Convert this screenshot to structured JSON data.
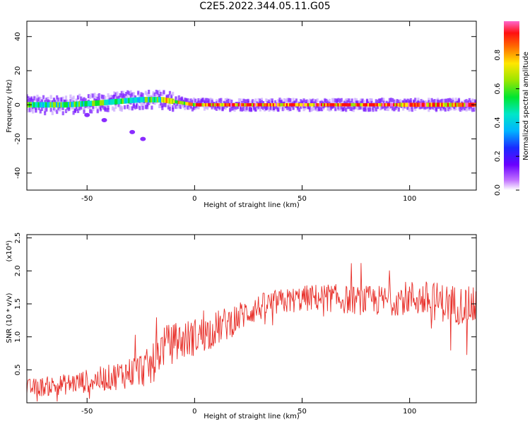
{
  "title": "C2E5.2022.344.05.11.G05",
  "chart_data": [
    {
      "type": "heatmap",
      "xlabel": "Height of straight line (km)",
      "ylabel": "Frequency (Hz)",
      "xlim": [
        -78,
        131
      ],
      "ylim": [
        -50,
        49
      ],
      "xticks": [
        -50,
        0,
        50,
        100
      ],
      "yticks": [
        40,
        20,
        0,
        -20,
        -40
      ],
      "colorbar": {
        "label": "Normalized spectral amplitude",
        "range": [
          0.0,
          1.0
        ],
        "ticks": [
          "0.0",
          "0.2",
          "0.4",
          "0.6",
          "0.8"
        ],
        "tick_values": [
          0.0,
          0.2,
          0.4,
          0.6,
          0.8
        ]
      },
      "ridge": {
        "description_points_x": [
          -78,
          -60,
          -45,
          -35,
          -25,
          -15,
          -5,
          0,
          20,
          50,
          80,
          100,
          120,
          131
        ],
        "center_freq": [
          0,
          0,
          1,
          2,
          3,
          3,
          1,
          0,
          0,
          0,
          0,
          0,
          0,
          0
        ]
      },
      "scatter_blobs": [
        {
          "x": -50,
          "y": -6
        },
        {
          "x": -42,
          "y": -9
        },
        {
          "x": -29,
          "y": -16
        },
        {
          "x": -24,
          "y": -20
        }
      ],
      "grid": false
    },
    {
      "type": "line",
      "xlabel": "Height of straight line (km)",
      "ylabel": "SNR (10 * v/v)",
      "yscale_label": "(x10⁴)",
      "xlim": [
        -78,
        131
      ],
      "ylim": [
        0,
        2.55
      ],
      "xticks": [
        -50,
        0,
        50,
        100
      ],
      "yticks": [
        0.5,
        1.0,
        1.5,
        2.0,
        2.5
      ],
      "ytick_labels": [
        "0.5",
        "1.0",
        "1.5",
        "2.0",
        "2.5"
      ],
      "series": [
        {
          "color": "#e8302a",
          "trend_x": [
            -78,
            -60,
            -40,
            -20,
            -15,
            -5,
            5,
            15,
            25,
            35,
            50,
            60,
            75,
            90,
            100,
            110,
            120,
            131
          ],
          "trend_y": [
            0.22,
            0.28,
            0.38,
            0.55,
            0.85,
            0.95,
            1.05,
            1.2,
            1.38,
            1.5,
            1.58,
            1.6,
            1.55,
            1.55,
            1.6,
            1.55,
            1.5,
            1.45
          ],
          "spread": [
            0.14,
            0.16,
            0.2,
            0.3,
            0.32,
            0.3,
            0.28,
            0.26,
            0.22,
            0.2,
            0.2,
            0.22,
            0.22,
            0.24,
            0.26,
            0.3,
            0.3,
            0.3
          ]
        }
      ],
      "grid": false
    }
  ]
}
